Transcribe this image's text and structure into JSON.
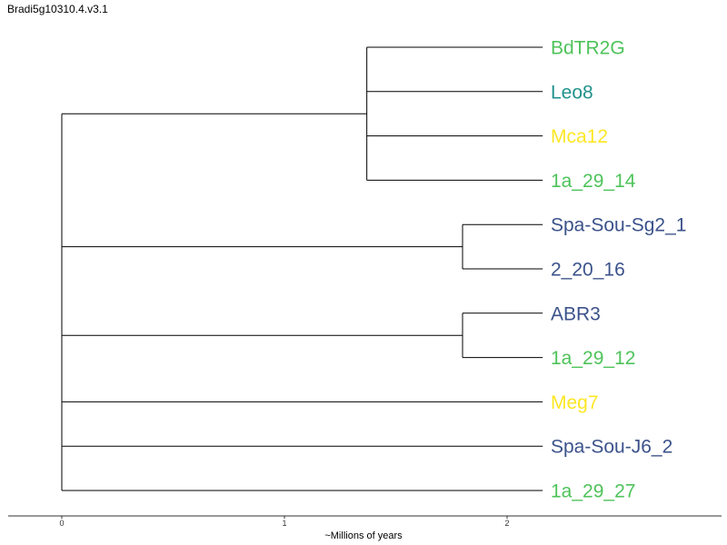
{
  "title": "Bradi5g10310.4.v3.1",
  "colors": {
    "green": "#4ec35a",
    "teal": "#21918c",
    "yellow": "#fde725",
    "navy": "#3b528b",
    "line": "#000000"
  },
  "tree": {
    "x_axis": {
      "label": "~Millions of years",
      "ticks": [
        "0",
        "1",
        "2"
      ],
      "range": [
        -0.24,
        2.96
      ]
    },
    "root_age": 0,
    "leaves": [
      {
        "name": "BdTR2G",
        "color": "#4ec35a",
        "x": 2.16
      },
      {
        "name": "Leo8",
        "color": "#21918c",
        "x": 2.16
      },
      {
        "name": "Mca12",
        "color": "#fde725",
        "x": 2.16
      },
      {
        "name": "1a_29_14",
        "color": "#4ec35a",
        "x": 2.16
      },
      {
        "name": "Spa-Sou-Sg2_1",
        "color": "#3b528b",
        "x": 2.16
      },
      {
        "name": "2_20_16",
        "color": "#3b528b",
        "x": 2.16
      },
      {
        "name": "ABR3",
        "color": "#3b528b",
        "x": 2.16
      },
      {
        "name": "1a_29_12",
        "color": "#4ec35a",
        "x": 2.16
      },
      {
        "name": "Meg7",
        "color": "#fde725",
        "x": 2.16
      },
      {
        "name": "Spa-Sou-J6_2",
        "color": "#3b528b",
        "x": 2.16
      },
      {
        "name": "1a_29_27",
        "color": "#4ec35a",
        "x": 2.16
      }
    ],
    "clades": [
      {
        "node_x": 1.37,
        "children": [
          0,
          1,
          2,
          3
        ]
      },
      {
        "node_x": 1.8,
        "children": [
          4,
          5
        ]
      },
      {
        "node_x": 1.8,
        "children": [
          6,
          7
        ]
      }
    ],
    "root_children": [
      "clade0",
      "clade1",
      "clade2",
      "leaf8",
      "leaf9",
      "leaf10"
    ]
  }
}
